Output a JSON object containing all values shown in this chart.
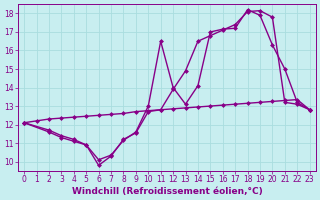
{
  "background_color": "#c8eef0",
  "grid_color": "#aadddf",
  "line_color": "#880088",
  "marker": "D",
  "markersize": 2.5,
  "linewidth": 1.0,
  "xlim": [
    -0.5,
    23.5
  ],
  "ylim": [
    9.5,
    18.5
  ],
  "xlabel": "Windchill (Refroidissement éolien,°C)",
  "xlabel_fontsize": 6.5,
  "tick_fontsize": 5.5,
  "xticks": [
    0,
    1,
    2,
    3,
    4,
    5,
    6,
    7,
    8,
    9,
    10,
    11,
    12,
    13,
    14,
    15,
    16,
    17,
    18,
    19,
    20,
    21,
    22,
    23
  ],
  "yticks": [
    10,
    11,
    12,
    13,
    14,
    15,
    16,
    17,
    18
  ],
  "line1_x": [
    0,
    1,
    2,
    3,
    4,
    5,
    6,
    7,
    8,
    9,
    10,
    11,
    12,
    13,
    14,
    15,
    16,
    17,
    18,
    19,
    20,
    21,
    22,
    23
  ],
  "line1_y": [
    12.1,
    12.2,
    12.3,
    12.35,
    12.4,
    12.45,
    12.5,
    12.55,
    12.6,
    12.7,
    12.75,
    12.8,
    12.85,
    12.9,
    12.95,
    13.0,
    13.05,
    13.1,
    13.15,
    13.2,
    13.25,
    13.3,
    13.35,
    12.8
  ],
  "line2_x": [
    0,
    2,
    3,
    4,
    5,
    6,
    7,
    8,
    9,
    10,
    11,
    12,
    13,
    14,
    15,
    16,
    17,
    18,
    19,
    20,
    21,
    22,
    23
  ],
  "line2_y": [
    12.1,
    11.6,
    11.3,
    11.1,
    10.9,
    9.8,
    10.3,
    11.2,
    11.55,
    12.7,
    12.8,
    13.9,
    14.9,
    16.5,
    16.8,
    17.1,
    17.4,
    18.1,
    18.15,
    17.8,
    13.2,
    13.1,
    12.8
  ],
  "line3_x": [
    0,
    2,
    3,
    4,
    5,
    6,
    7,
    8,
    9,
    10,
    11,
    12,
    13,
    14,
    15,
    16,
    17,
    18,
    19,
    20,
    21,
    22,
    23
  ],
  "line3_y": [
    12.1,
    11.7,
    11.4,
    11.2,
    10.9,
    10.1,
    10.35,
    11.15,
    11.6,
    13.0,
    16.5,
    14.0,
    13.1,
    14.1,
    17.0,
    17.15,
    17.2,
    18.2,
    17.9,
    16.3,
    15.0,
    13.2,
    12.8
  ]
}
